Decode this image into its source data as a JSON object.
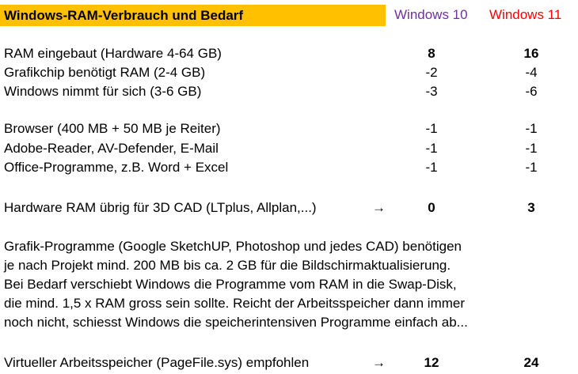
{
  "title": "Windows-RAM-Verbrauch und Bedarf",
  "headers": {
    "windows10": "Windows 10",
    "windows11": "Windows 11"
  },
  "rows": [
    {
      "label": "RAM eingebaut (Hardware 4-64 GB)",
      "arrow": "",
      "win10": "8",
      "win11": "16"
    },
    {
      "label": "Grafikchip benötigt RAM (2-4 GB)",
      "arrow": "",
      "win10": "-2",
      "win11": "-4"
    },
    {
      "label": "Windows nimmt für sich  (3-6 GB)",
      "arrow": "",
      "win10": "-3",
      "win11": "-6"
    },
    {
      "label": "Browser (400 MB + 50 MB je Reiter)",
      "arrow": "",
      "win10": "-1",
      "win11": "-1"
    },
    {
      "label": "Adobe-Reader, AV-Defender, E-Mail",
      "arrow": "",
      "win10": "-1",
      "win11": "-1"
    },
    {
      "label": "Office-Programme, z.B. Word + Excel",
      "arrow": "",
      "win10": "-1",
      "win11": "-1"
    },
    {
      "label": "Hardware RAM übrig für 3D CAD (LTplus, Allplan,...)",
      "arrow": "→",
      "win10": "0",
      "win11": "3"
    },
    {
      "label": "Virtueller Arbeitsspeicher (PageFile.sys) empfohlen",
      "arrow": "→",
      "win10": "12",
      "win11": "24"
    }
  ],
  "paragraph": [
    "Grafik-Programme (Google SketchUP, Photoshop und jedes CAD) benötigen",
    "je nach Projekt mind. 200 MB bis ca. 2 GB für die Bildschirmaktualisierung.",
    "Bei Bedarf verschiebt Windows die Programme vom RAM in die Swap-Disk,",
    "die mind. 1,5 x RAM gross sein sollte. Reicht der Arbeitsspeicher dann immer",
    "noch nicht, schiesst Windows die speicherintensiven Programme einfach ab..."
  ]
}
